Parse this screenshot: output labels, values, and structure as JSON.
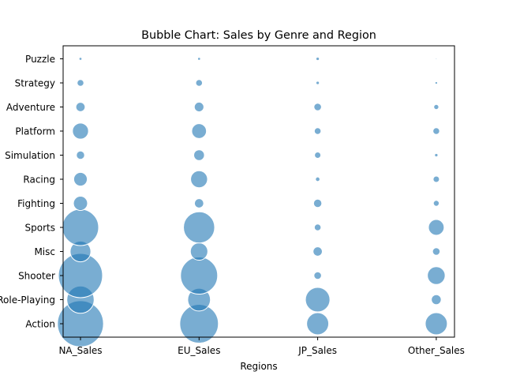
{
  "chart_data": {
    "type": "bubble",
    "title": "Bubble Chart: Sales by Genre and Region",
    "xlabel": "Regions",
    "ylabel": "",
    "x_categories": [
      "NA_Sales",
      "EU_Sales",
      "JP_Sales",
      "Other_Sales"
    ],
    "y_categories": [
      "Action",
      "Role-Playing",
      "Shooter",
      "Misc",
      "Sports",
      "Fighting",
      "Racing",
      "Simulation",
      "Platform",
      "Adventure",
      "Strategy",
      "Puzzle"
    ],
    "bubble_color": "#1f77b4",
    "bubble_alpha": 0.6,
    "edge_color": "#ffffff",
    "grid": false,
    "values": [
      [
        37,
        26,
        8.5,
        8.5
      ],
      [
        13,
        9,
        10.5,
        1.7
      ],
      [
        34,
        24,
        1.0,
        5.5
      ],
      [
        7.5,
        5.3,
        1.5,
        1.0
      ],
      [
        23,
        17,
        0.8,
        4.3
      ],
      [
        3.5,
        1.5,
        1.2,
        0.6
      ],
      [
        3.2,
        5.0,
        0.35,
        0.7
      ],
      [
        1.2,
        2.0,
        0.7,
        0.2
      ],
      [
        4.5,
        3.8,
        0.8,
        0.8
      ],
      [
        1.5,
        1.6,
        1.0,
        0.45
      ],
      [
        0.8,
        0.8,
        0.2,
        0.12
      ],
      [
        0.15,
        0.15,
        0.2,
        0.03
      ]
    ]
  }
}
